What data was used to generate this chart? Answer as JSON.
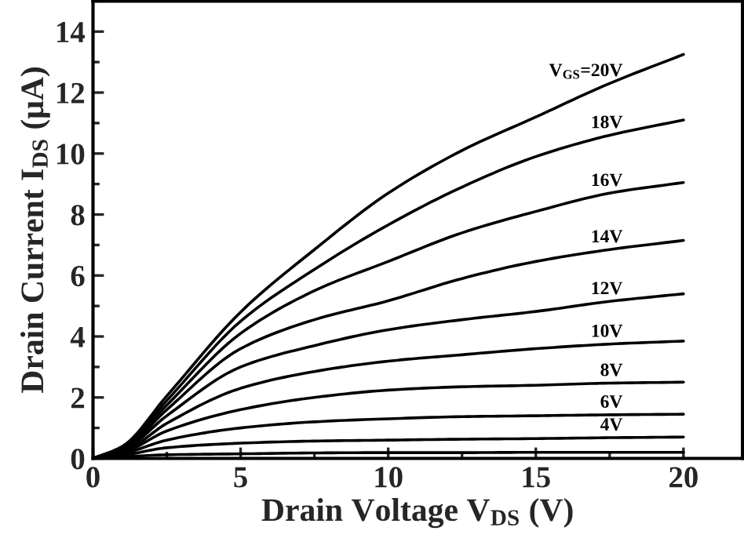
{
  "chart_data": {
    "type": "line",
    "xlabel": "Drain Voltage V$_{DS}$ (V)",
    "ylabel": "Drain Current I$_{DS}$ (μA)",
    "x": [
      0,
      1,
      2.5,
      5,
      7.5,
      10,
      12.5,
      15,
      17.5,
      20
    ],
    "series": [
      {
        "name": "V$_{GS}$=20V",
        "color": "#000000",
        "values": [
          0,
          0.4,
          2.05,
          4.8,
          6.85,
          8.7,
          10.1,
          11.2,
          12.3,
          13.25
        ]
      },
      {
        "name": "18V",
        "color": "#000000",
        "values": [
          0,
          0.35,
          1.9,
          4.5,
          6.2,
          7.66,
          8.9,
          9.9,
          10.6,
          11.1
        ]
      },
      {
        "name": "16V",
        "color": "#000000",
        "values": [
          0,
          0.3,
          1.75,
          4.1,
          5.5,
          6.46,
          7.4,
          8.1,
          8.7,
          9.05
        ]
      },
      {
        "name": "14V",
        "color": "#000000",
        "values": [
          0,
          0.28,
          1.6,
          3.6,
          4.55,
          5.17,
          5.9,
          6.46,
          6.85,
          7.15
        ]
      },
      {
        "name": "12V",
        "color": "#000000",
        "values": [
          0,
          0.25,
          1.4,
          3.0,
          3.7,
          4.22,
          4.55,
          4.82,
          5.15,
          5.4
        ]
      },
      {
        "name": "10V",
        "color": "#000000",
        "values": [
          0,
          0.2,
          1.15,
          2.3,
          2.85,
          3.19,
          3.4,
          3.6,
          3.75,
          3.85
        ]
      },
      {
        "name": "8V",
        "color": "#000000",
        "values": [
          0,
          0.18,
          0.9,
          1.6,
          2.0,
          2.24,
          2.35,
          2.4,
          2.47,
          2.5
        ]
      },
      {
        "name": "6V",
        "color": "#000000",
        "values": [
          0,
          0.15,
          0.6,
          1.0,
          1.2,
          1.3,
          1.37,
          1.4,
          1.43,
          1.45
        ]
      },
      {
        "name": "4V",
        "color": "#000000",
        "values": [
          0,
          0.1,
          0.35,
          0.5,
          0.57,
          0.6,
          0.63,
          0.65,
          0.68,
          0.7
        ]
      },
      {
        "color": "#000000",
        "values": [
          0,
          0.05,
          0.12,
          0.15,
          0.18,
          0.19,
          0.19,
          0.2,
          0.2,
          0.2
        ]
      }
    ],
    "xlim": [
      0,
      22
    ],
    "ylim": [
      0,
      15
    ],
    "xticks": [
      0,
      5,
      10,
      15,
      20
    ],
    "yticks": [
      0,
      2,
      4,
      6,
      8,
      10,
      12,
      14
    ],
    "grid": false,
    "legend": false,
    "marker": "none",
    "line_style": "solid"
  }
}
